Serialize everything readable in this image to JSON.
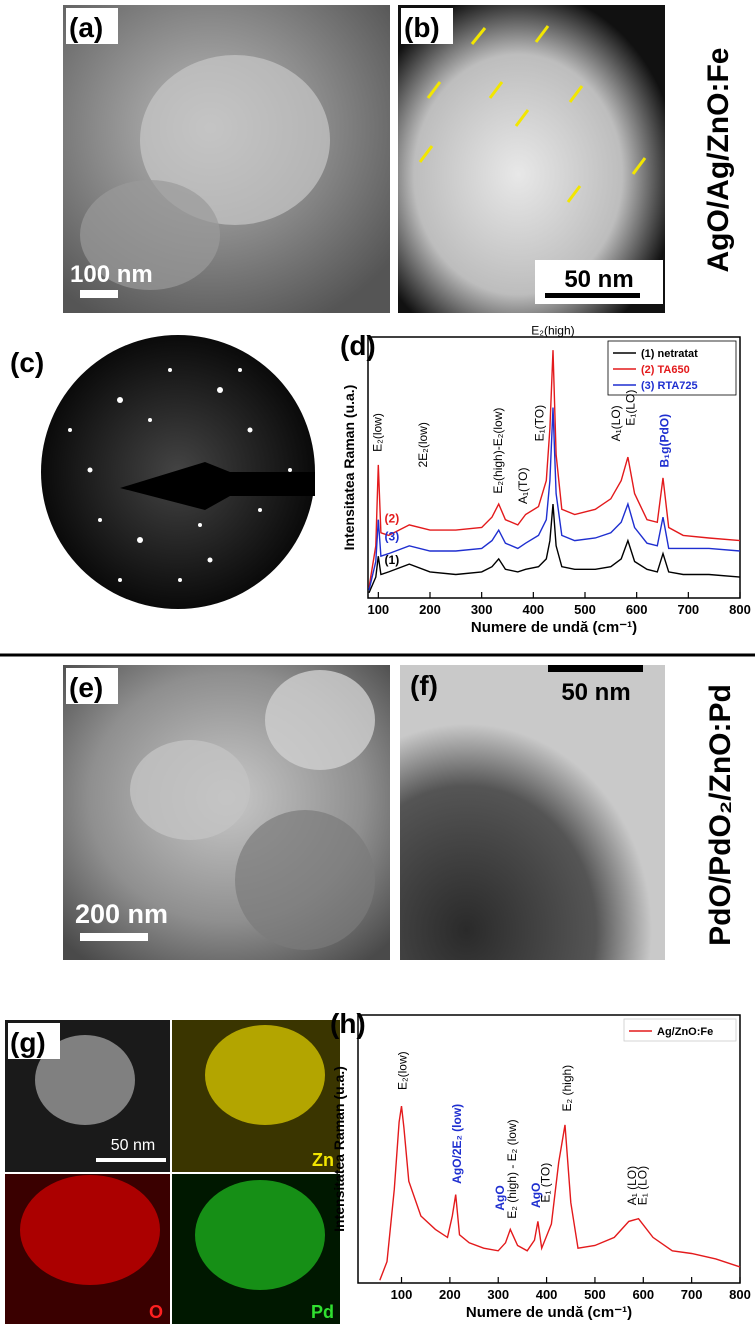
{
  "panels": {
    "a": {
      "label": "(a)",
      "scale_bar": "100 nm"
    },
    "b": {
      "label": "(b)",
      "scale_bar": "50 nm"
    },
    "c": {
      "label": "(c)"
    },
    "e": {
      "label": "(e)",
      "scale_bar": "200 nm"
    },
    "f": {
      "label": "(f)",
      "scale_bar": "50 nm"
    },
    "g": {
      "label": "(g)",
      "scale_bar": "50 nm",
      "elements": [
        "Zn",
        "O",
        "Pd"
      ]
    }
  },
  "side_labels": [
    "AgO/Ag/ZnO:Fe",
    "PdO/PdO₂/ZnO:Pd"
  ],
  "chart_data": [
    {
      "type": "line",
      "label": "(d)",
      "xlabel": "Numere de undă (cm⁻¹)",
      "ylabel": "Intensitatea Raman (u.a.)",
      "xlim": [
        80,
        800
      ],
      "ylim": [
        0,
        100
      ],
      "xticks": [
        100,
        200,
        300,
        400,
        500,
        600,
        700,
        800
      ],
      "legend": "upper right",
      "x": [
        82,
        95,
        100,
        105,
        120,
        160,
        200,
        250,
        300,
        320,
        333,
        346,
        370,
        385,
        410,
        425,
        432,
        438,
        444,
        455,
        480,
        520,
        550,
        570,
        583,
        596,
        620,
        640,
        651,
        662,
        690,
        740,
        800
      ],
      "series": [
        {
          "name": "(1) netratat",
          "label": "(1)",
          "color": "#000000",
          "values": [
            2,
            8,
            16,
            9,
            10,
            13,
            10,
            9,
            10,
            12,
            15,
            11,
            10,
            11,
            12,
            15,
            22,
            36,
            20,
            12,
            11,
            11,
            12,
            15,
            22,
            14,
            11,
            10,
            17,
            10,
            9,
            9,
            8
          ]
        },
        {
          "name": "(2) TA650",
          "label": "(2)",
          "color": "#e31a1c",
          "values": [
            4,
            20,
            51,
            25,
            24,
            28,
            26,
            26,
            27,
            31,
            36,
            30,
            28,
            32,
            35,
            45,
            65,
            95,
            55,
            34,
            32,
            34,
            38,
            45,
            54,
            40,
            30,
            29,
            46,
            27,
            24,
            23,
            22
          ]
        },
        {
          "name": "(3) RTA725",
          "label": "(3)",
          "color": "#1f2fd0",
          "values": [
            3,
            14,
            30,
            16,
            17,
            20,
            18,
            18,
            19,
            22,
            26,
            21,
            19,
            21,
            24,
            30,
            45,
            73,
            40,
            24,
            22,
            23,
            25,
            29,
            36,
            27,
            21,
            20,
            31,
            19,
            19,
            19,
            18
          ]
        }
      ],
      "annotations": [
        {
          "text": "E₂(high)",
          "color": "#000000"
        },
        {
          "text": "E₂(low)",
          "color": "#000000"
        },
        {
          "text": "2E₂(low)",
          "color": "#000000"
        },
        {
          "text": "E₂(high)-E₂(low)",
          "color": "#000000"
        },
        {
          "text": "A₁(TO)",
          "color": "#000000"
        },
        {
          "text": "E₁(TO)",
          "color": "#000000"
        },
        {
          "text": "A₁(LO)",
          "color": "#000000"
        },
        {
          "text": "E₁(LO)",
          "color": "#000000"
        },
        {
          "text": "B₁g(PdO)",
          "color": "#1f2fd0"
        }
      ]
    },
    {
      "type": "line",
      "label": "(h)",
      "xlabel": "Numere de undă (cm⁻¹)",
      "ylabel": "Intensitatea Raman (u.a.)",
      "xlim": [
        10,
        800
      ],
      "ylim": [
        0,
        100
      ],
      "xticks": [
        100,
        200,
        300,
        400,
        500,
        600,
        700,
        800
      ],
      "legend": "upper right",
      "x": [
        55,
        70,
        85,
        95,
        100,
        105,
        115,
        140,
        170,
        195,
        205,
        212,
        220,
        240,
        270,
        300,
        315,
        325,
        340,
        360,
        375,
        382,
        390,
        410,
        425,
        438,
        450,
        465,
        500,
        540,
        570,
        590,
        620,
        660,
        700,
        750,
        800
      ],
      "series": [
        {
          "name": "Ag/ZnO:Fe",
          "color": "#e31a1c",
          "values": [
            1,
            8,
            35,
            60,
            66,
            58,
            38,
            25,
            20,
            17,
            25,
            33,
            18,
            15,
            13,
            12,
            15,
            20,
            14,
            12,
            16,
            23,
            13,
            22,
            45,
            59,
            30,
            13,
            14,
            17,
            23,
            24,
            17,
            12,
            11,
            9,
            6
          ]
        }
      ],
      "annotations": [
        {
          "text": "E₂(low)",
          "color": "#000000"
        },
        {
          "text": "AgO/2E₂ (low)",
          "color": "#1f2fd0"
        },
        {
          "text": "AgO",
          "color": "#1f2fd0"
        },
        {
          "text": "E₂ (high) - E₂ (low)",
          "color": "#000000"
        },
        {
          "text": "AgO",
          "color": "#1f2fd0"
        },
        {
          "text": "E₁ (TO)",
          "color": "#000000"
        },
        {
          "text": "E₂ (high)",
          "color": "#000000"
        },
        {
          "text": "A₁ (LO)",
          "color": "#000000"
        },
        {
          "text": "E₁ (LO)",
          "color": "#000000"
        }
      ]
    }
  ]
}
